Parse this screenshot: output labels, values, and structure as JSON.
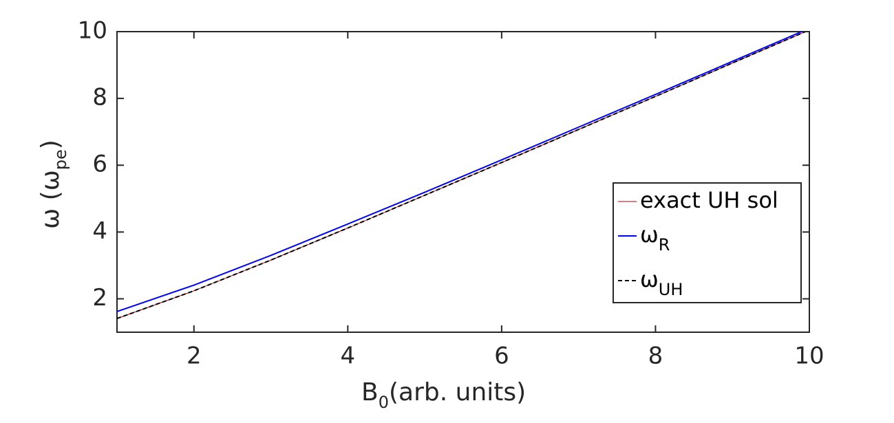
{
  "chart_data": {
    "type": "line",
    "x_label": {
      "main": "B",
      "sub": "0",
      "rest": "(arb. units)"
    },
    "y_label": {
      "main": "ω (ω",
      "sub": "pe",
      "rest": ")"
    },
    "x": [
      1,
      2,
      3,
      4,
      5,
      6,
      7,
      8,
      9,
      10
    ],
    "series": [
      {
        "name": "exact UH sol",
        "color": "#a00000",
        "dash": false,
        "width": 1,
        "values": [
          1.41,
          2.24,
          3.16,
          4.12,
          5.1,
          6.08,
          7.07,
          8.06,
          9.06,
          10.05
        ]
      },
      {
        "name": "ω",
        "name_sub": "R",
        "color": "#0000ff",
        "dash": false,
        "width": 2,
        "values": [
          1.62,
          2.41,
          3.3,
          4.24,
          5.19,
          6.16,
          7.14,
          8.12,
          9.11,
          10.1
        ]
      },
      {
        "name": "ω",
        "name_sub": "UH",
        "color": "#000000",
        "dash": true,
        "width": 2,
        "values": [
          1.41,
          2.24,
          3.16,
          4.12,
          5.1,
          6.08,
          7.07,
          8.06,
          9.06,
          10.05
        ]
      }
    ],
    "xlim": [
      1,
      10
    ],
    "xticks": [
      2,
      4,
      6,
      8,
      10
    ],
    "ylim": [
      1,
      10
    ],
    "yticks": [
      2,
      4,
      6,
      8,
      10
    ],
    "legend": "right"
  }
}
